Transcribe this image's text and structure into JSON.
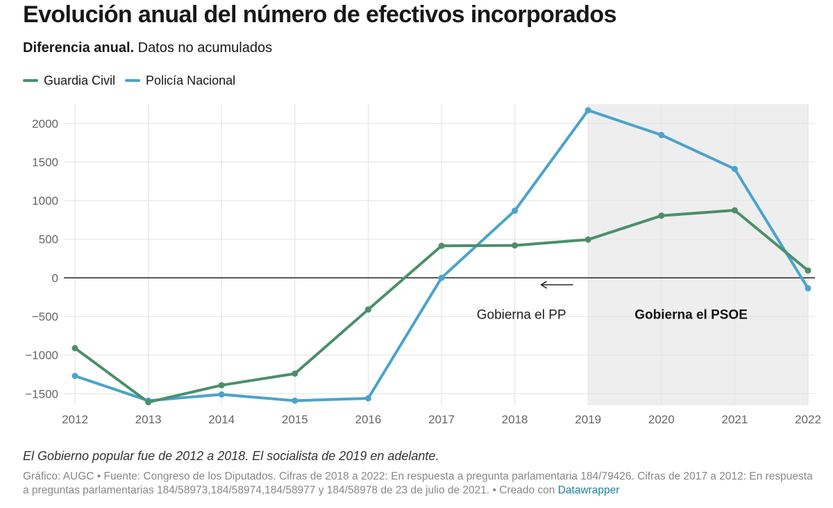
{
  "header": {
    "title": "Evolución anual del número de efectivos incorporados",
    "subtitle_bold": "Diferencia anual.",
    "subtitle_rest": " Datos no acumulados"
  },
  "colors": {
    "guardia_civil": "#4a8f6b",
    "policia_nacional": "#4aa3cc",
    "shade": "#eeeeee",
    "grid": "#e2e2e2",
    "axis_text": "#666666"
  },
  "chart_data": {
    "type": "line",
    "x": [
      2012,
      2013,
      2014,
      2015,
      2016,
      2017,
      2018,
      2019,
      2020,
      2021,
      2022
    ],
    "series": [
      {
        "name": "Guardia Civil",
        "values": [
          -910,
          -1610,
          -1390,
          -1240,
          -410,
          415,
          420,
          495,
          805,
          875,
          95
        ]
      },
      {
        "name": "Policía Nacional",
        "values": [
          -1270,
          -1590,
          -1510,
          -1590,
          -1560,
          0,
          870,
          2170,
          1850,
          1410,
          -135
        ]
      }
    ],
    "xlim": [
      2012,
      2022
    ],
    "ylim": [
      -1650,
      2250
    ],
    "yticks": [
      2000,
      1500,
      1000,
      500,
      0,
      -500,
      -1000,
      -1500
    ],
    "ytick_labels": [
      "2000",
      "1500",
      "1000",
      "500",
      "0",
      "−500",
      "−1000",
      "−1500"
    ],
    "shaded_range": [
      2019,
      2022
    ],
    "annotations": {
      "pp": "Gobierna el PP",
      "psoe": "Gobierna el PSOE"
    },
    "legend_position": "top-left",
    "grid": true
  },
  "notes": {
    "italic": "El Gobierno popular fue de 2012 a 2018. El socialista de 2019 en adelante.",
    "source": "Gráfico: AUGC • Fuente: Congreso de los Diputados. Cifras de 2018 a 2022: En respuesta a pregunta parlamentaria 184/79426. Cifras de 2017 a 2012: En respuesta a preguntas parlamentarias 184/58973,184/58974,184/58977 y 184/58978 de 23 de julio de 2021. • Creado con ",
    "link": "Datawrapper"
  }
}
